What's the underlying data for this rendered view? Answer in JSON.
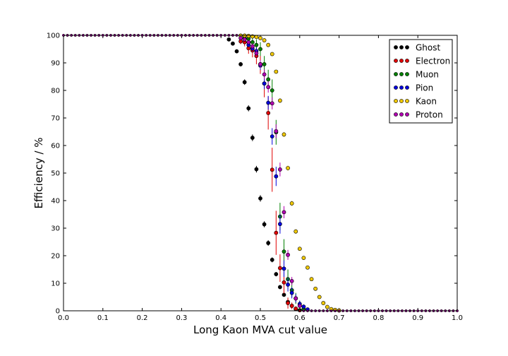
{
  "chart_data": {
    "type": "scatter",
    "xlabel": "Long Kaon MVA cut value",
    "ylabel": "Efficiency / %",
    "xlim": [
      0.0,
      1.0
    ],
    "ylim": [
      0,
      100
    ],
    "xticks": [
      "0.0",
      "0.1",
      "0.2",
      "0.3",
      "0.4",
      "0.5",
      "0.6",
      "0.7",
      "0.8",
      "0.9",
      "1.0"
    ],
    "yticks": [
      "0",
      "10",
      "20",
      "30",
      "40",
      "50",
      "60",
      "70",
      "80",
      "90",
      "100"
    ],
    "grid": false,
    "legend_position": "top-right",
    "series": [
      {
        "name": "Ghost",
        "color": "#000000",
        "x": [
          0.42,
          0.43,
          0.44,
          0.45,
          0.46,
          0.47,
          0.48,
          0.49,
          0.5,
          0.51,
          0.52,
          0.53,
          0.54,
          0.55,
          0.56,
          0.57,
          0.58,
          0.59,
          0.6
        ],
        "y": [
          98.5,
          97,
          94.2,
          89.5,
          83,
          73.5,
          62.8,
          51.4,
          40.8,
          31.4,
          24.6,
          18.5,
          13.3,
          8.6,
          5.8,
          3.2,
          1.8,
          0.6,
          0.2
        ],
        "err": [
          0.4,
          0.5,
          0.7,
          0.8,
          1,
          1.1,
          1.2,
          1.2,
          1.2,
          1.1,
          1.0,
          0.9,
          0.8,
          0.7,
          0.5,
          0.4,
          0.3,
          0.2,
          0.1
        ]
      },
      {
        "name": "Electron",
        "color": "#e00000",
        "x": [
          0.45,
          0.46,
          0.47,
          0.48,
          0.49,
          0.5,
          0.51,
          0.52,
          0.53,
          0.54,
          0.55,
          0.56,
          0.57,
          0.58,
          0.59
        ],
        "y": [
          97.8,
          97.5,
          95.3,
          94.5,
          92.5,
          89.5,
          82.5,
          71.8,
          51.2,
          28.3,
          15.5,
          10.3,
          2.8,
          1.8,
          0.8
        ],
        "err": [
          1,
          1.5,
          2,
          2.5,
          3,
          3.5,
          5,
          6,
          8,
          8,
          5,
          4,
          2,
          1.2,
          0.8
        ]
      },
      {
        "name": "Muon",
        "color": "#008000",
        "x": [
          0.46,
          0.47,
          0.48,
          0.49,
          0.5,
          0.51,
          0.52,
          0.53,
          0.54,
          0.55,
          0.56,
          0.57,
          0.58,
          0.59,
          0.6,
          0.61
        ],
        "y": [
          99,
          98.8,
          97.5,
          96.5,
          95,
          89.5,
          84,
          80,
          64.8,
          34.2,
          21.5,
          11.5,
          7.5,
          4.5,
          2,
          0.6
        ],
        "err": [
          1,
          1,
          1.5,
          2,
          2.5,
          3,
          3.5,
          4,
          4.5,
          5,
          4.5,
          3.5,
          2.5,
          2,
          1.5,
          1
        ]
      },
      {
        "name": "Pion",
        "color": "#0000dd",
        "x": [
          0.46,
          0.47,
          0.48,
          0.49,
          0.5,
          0.51,
          0.52,
          0.53,
          0.54,
          0.55,
          0.56,
          0.57,
          0.58,
          0.59,
          0.6,
          0.61,
          0.62
        ],
        "y": [
          98.5,
          96.5,
          95.2,
          94.3,
          89,
          82.5,
          75.5,
          63.3,
          48.8,
          31.5,
          15.3,
          9.5,
          6.5,
          4.5,
          2.5,
          1.5,
          0.5
        ],
        "err": [
          0.5,
          0.8,
          1,
          1.2,
          1.5,
          2,
          2.5,
          3,
          3.5,
          3.5,
          3,
          2.5,
          2,
          1.5,
          1.2,
          0.8,
          0.4
        ]
      },
      {
        "name": "Kaon",
        "color": "#f0c800",
        "x": [
          0.45,
          0.46,
          0.47,
          0.48,
          0.49,
          0.5,
          0.51,
          0.52,
          0.53,
          0.54,
          0.55,
          0.56,
          0.57,
          0.58,
          0.59,
          0.6,
          0.61,
          0.62,
          0.63,
          0.64,
          0.65,
          0.66,
          0.67,
          0.68,
          0.69,
          0.7
        ],
        "y": [
          99.9,
          99.9,
          99.8,
          99.6,
          99.4,
          99,
          98.2,
          96.5,
          93.2,
          86.8,
          76.3,
          64,
          51.8,
          39,
          28.8,
          22.5,
          19.2,
          15.7,
          11.5,
          8,
          5,
          2.8,
          1.4,
          0.6,
          0.3,
          0.1
        ],
        "err": [
          0.1,
          0.1,
          0.1,
          0.2,
          0.2,
          0.2,
          0.3,
          0.4,
          0.5,
          0.6,
          0.8,
          0.9,
          0.9,
          0.9,
          0.8,
          0.7,
          0.6,
          0.5,
          0.4,
          0.4,
          0.3,
          0.2,
          0.2,
          0.1,
          0.1,
          0.05
        ]
      },
      {
        "name": "Proton",
        "color": "#b000b0",
        "x": [
          0.45,
          0.46,
          0.47,
          0.48,
          0.49,
          0.5,
          0.51,
          0.52,
          0.53,
          0.54,
          0.55,
          0.56,
          0.57,
          0.58,
          0.59,
          0.6
        ],
        "y": [
          99,
          98.5,
          97.5,
          96,
          93.5,
          89.5,
          85.8,
          81.2,
          75.3,
          65.2,
          51.3,
          35.8,
          20.3,
          10.8,
          4.5,
          1.8
        ],
        "err": [
          0.5,
          0.6,
          0.8,
          1,
          1.2,
          1.5,
          1.8,
          2,
          2.2,
          2.5,
          2.5,
          2.2,
          1.8,
          1.5,
          1,
          0.6
        ]
      }
    ]
  }
}
